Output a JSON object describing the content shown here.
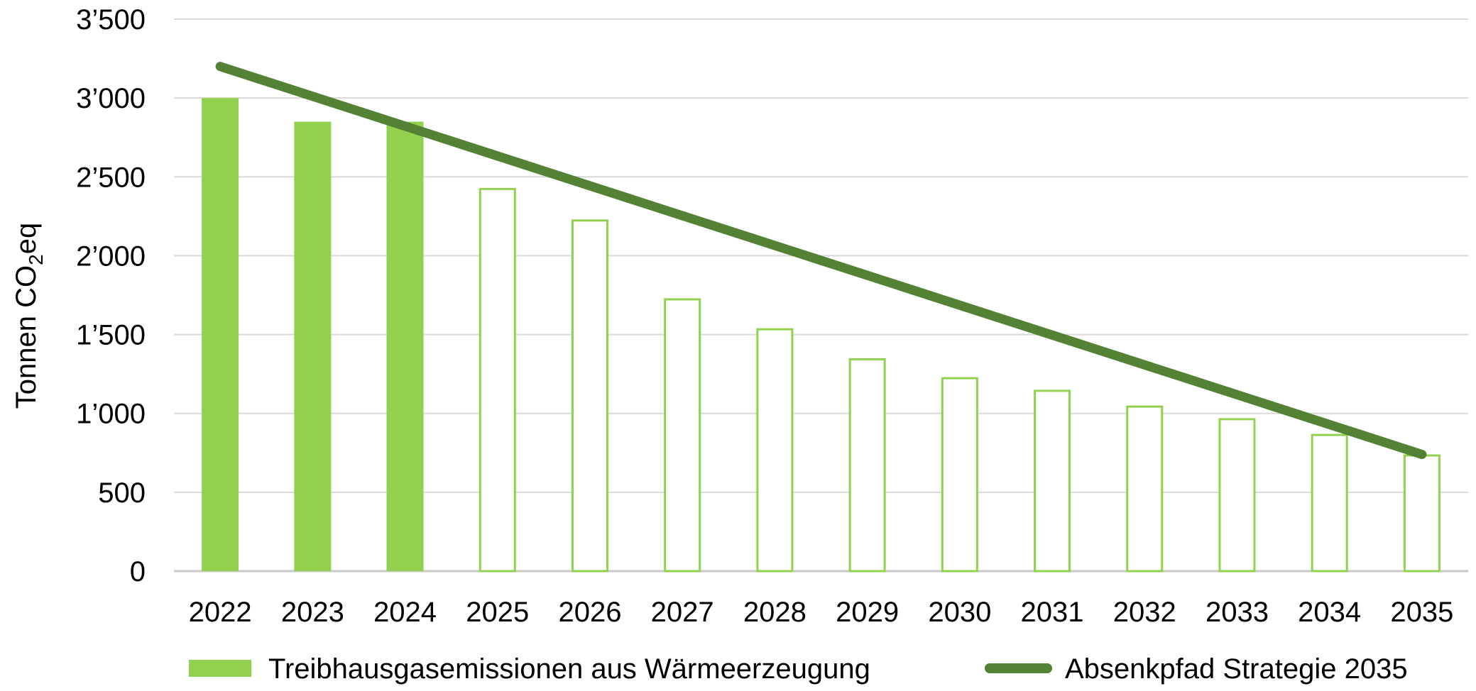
{
  "chart_data": {
    "type": "bar",
    "title": "",
    "xlabel": "",
    "ylabel": "Tonnen CO",
    "ylabel_subscript": "2",
    "ylabel_suffix": "eq",
    "ylim": [
      0,
      3500
    ],
    "yticks": [
      0,
      500,
      1000,
      1500,
      2000,
      2500,
      3000,
      3500
    ],
    "ytick_labels": [
      "0",
      "500",
      "1’000",
      "1’500",
      "2’000",
      "2’500",
      "3’000",
      "3’500"
    ],
    "grid": true,
    "legend_position": "bottom",
    "categories": [
      "2022",
      "2023",
      "2024",
      "2025",
      "2026",
      "2027",
      "2028",
      "2029",
      "2030",
      "2031",
      "2032",
      "2033",
      "2034",
      "2035"
    ],
    "series": [
      {
        "name": "Treibhausgasemissionen aus Wärmeerzeugung",
        "kind": "bar",
        "color": "#92d050",
        "values": [
          3000,
          2850,
          2850,
          2430,
          2230,
          1730,
          1540,
          1350,
          1230,
          1150,
          1050,
          970,
          870,
          740
        ],
        "filled": [
          true,
          true,
          true,
          false,
          false,
          false,
          false,
          false,
          false,
          false,
          false,
          false,
          false,
          false
        ]
      },
      {
        "name": "Absenkpfad Strategie 2035",
        "kind": "line",
        "color": "#548235",
        "start": {
          "x": "2022",
          "y": 3200
        },
        "end": {
          "x": "2035",
          "y": 740
        }
      }
    ]
  }
}
